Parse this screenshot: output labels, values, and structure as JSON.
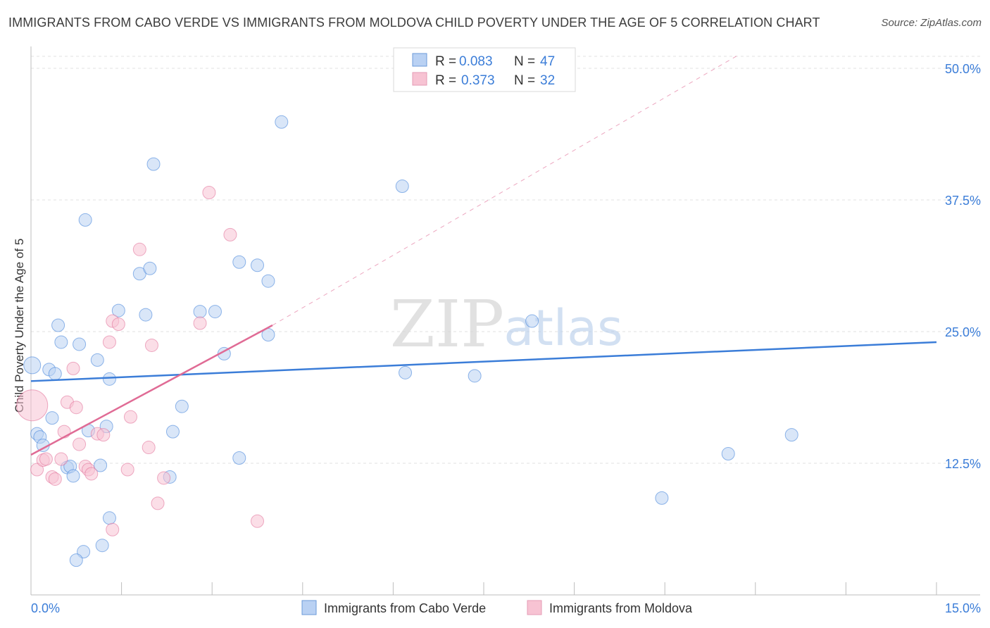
{
  "chart_data": {
    "type": "scatter",
    "title": "IMMIGRANTS FROM CABO VERDE VS IMMIGRANTS FROM MOLDOVA CHILD POVERTY UNDER THE AGE OF 5 CORRELATION CHART",
    "source": "Source: ZipAtlas.com",
    "ylabel": "Child Poverty Under the Age of 5",
    "xlabel": "",
    "xlim": [
      0,
      15
    ],
    "ylim": [
      0,
      50
    ],
    "x_tick_labels": [
      "0.0%",
      "15.0%"
    ],
    "y_ticks": [
      12.5,
      25.0,
      37.5,
      50.0
    ],
    "y_tick_labels": [
      "12.5%",
      "25.0%",
      "37.5%",
      "50.0%"
    ],
    "grid": true,
    "watermark": {
      "zip": "ZIP",
      "atlas": "atlas"
    },
    "legend": {
      "position": "top-center",
      "r_label": "R =",
      "n_label": "N =",
      "entries": [
        {
          "r": "0.083",
          "n": "47"
        },
        {
          "r": "0.373",
          "n": "32"
        }
      ]
    },
    "bottom_legend": [
      "Immigrants from Cabo Verde",
      "Immigrants from Moldova"
    ],
    "series": [
      {
        "name": "Immigrants from Cabo Verde",
        "color": "#3b7dd8",
        "fill": "#b9d1f3",
        "trend": {
          "x0": 0,
          "y0": 20.3,
          "x1": 15,
          "y1": 24.0
        },
        "points": [
          [
            0.02,
            21.8
          ],
          [
            0.3,
            21.4
          ],
          [
            0.4,
            21.0
          ],
          [
            0.1,
            15.3
          ],
          [
            0.15,
            15.0
          ],
          [
            0.2,
            14.2
          ],
          [
            0.35,
            16.8
          ],
          [
            0.45,
            25.6
          ],
          [
            0.5,
            24.0
          ],
          [
            0.8,
            23.8
          ],
          [
            0.9,
            35.6
          ],
          [
            0.6,
            12.1
          ],
          [
            0.65,
            12.2
          ],
          [
            0.7,
            11.3
          ],
          [
            0.95,
            15.6
          ],
          [
            1.1,
            22.3
          ],
          [
            1.15,
            12.3
          ],
          [
            1.25,
            16.0
          ],
          [
            1.3,
            20.5
          ],
          [
            1.45,
            27.0
          ],
          [
            1.8,
            30.5
          ],
          [
            1.9,
            26.6
          ],
          [
            1.97,
            31.0
          ],
          [
            2.03,
            40.9
          ],
          [
            2.3,
            11.2
          ],
          [
            2.35,
            15.5
          ],
          [
            2.5,
            17.9
          ],
          [
            2.8,
            26.9
          ],
          [
            3.05,
            26.9
          ],
          [
            3.2,
            22.9
          ],
          [
            3.45,
            31.6
          ],
          [
            3.45,
            13.0
          ],
          [
            3.75,
            31.3
          ],
          [
            3.93,
            29.8
          ],
          [
            3.93,
            24.7
          ],
          [
            4.15,
            44.9
          ],
          [
            6.15,
            38.8
          ],
          [
            6.2,
            21.1
          ],
          [
            7.35,
            20.8
          ],
          [
            8.3,
            26.0
          ],
          [
            10.45,
            9.2
          ],
          [
            11.55,
            13.4
          ],
          [
            12.6,
            15.2
          ],
          [
            1.3,
            7.3
          ],
          [
            1.18,
            4.7
          ],
          [
            0.87,
            4.1
          ],
          [
            0.75,
            3.3
          ]
        ]
      },
      {
        "name": "Immigrants from Moldova",
        "color": "#e06b95",
        "fill": "#f7c3d3",
        "trend": {
          "x0": 0,
          "y0": 13.3,
          "x1": 4.0,
          "y1": 25.6
        },
        "trend_extension": {
          "x0": 4.0,
          "y0": 25.6,
          "x1": 11.7,
          "y1": 51.2
        },
        "points": [
          [
            0.02,
            18.0
          ],
          [
            0.1,
            11.9
          ],
          [
            0.2,
            12.8
          ],
          [
            0.25,
            12.9
          ],
          [
            0.35,
            11.2
          ],
          [
            0.4,
            11.0
          ],
          [
            0.5,
            12.9
          ],
          [
            0.55,
            15.5
          ],
          [
            0.6,
            18.3
          ],
          [
            0.7,
            21.5
          ],
          [
            0.75,
            17.8
          ],
          [
            0.8,
            14.3
          ],
          [
            0.9,
            12.2
          ],
          [
            0.95,
            11.9
          ],
          [
            1.0,
            11.5
          ],
          [
            1.1,
            15.3
          ],
          [
            1.2,
            15.2
          ],
          [
            1.3,
            24.0
          ],
          [
            1.35,
            26.0
          ],
          [
            1.45,
            25.7
          ],
          [
            1.6,
            11.9
          ],
          [
            1.65,
            16.9
          ],
          [
            1.8,
            32.8
          ],
          [
            1.95,
            14.0
          ],
          [
            2.0,
            23.7
          ],
          [
            2.1,
            8.7
          ],
          [
            2.2,
            11.1
          ],
          [
            2.8,
            25.8
          ],
          [
            2.95,
            38.2
          ],
          [
            3.3,
            34.2
          ],
          [
            3.75,
            7.0
          ],
          [
            1.35,
            6.2
          ]
        ]
      }
    ]
  }
}
